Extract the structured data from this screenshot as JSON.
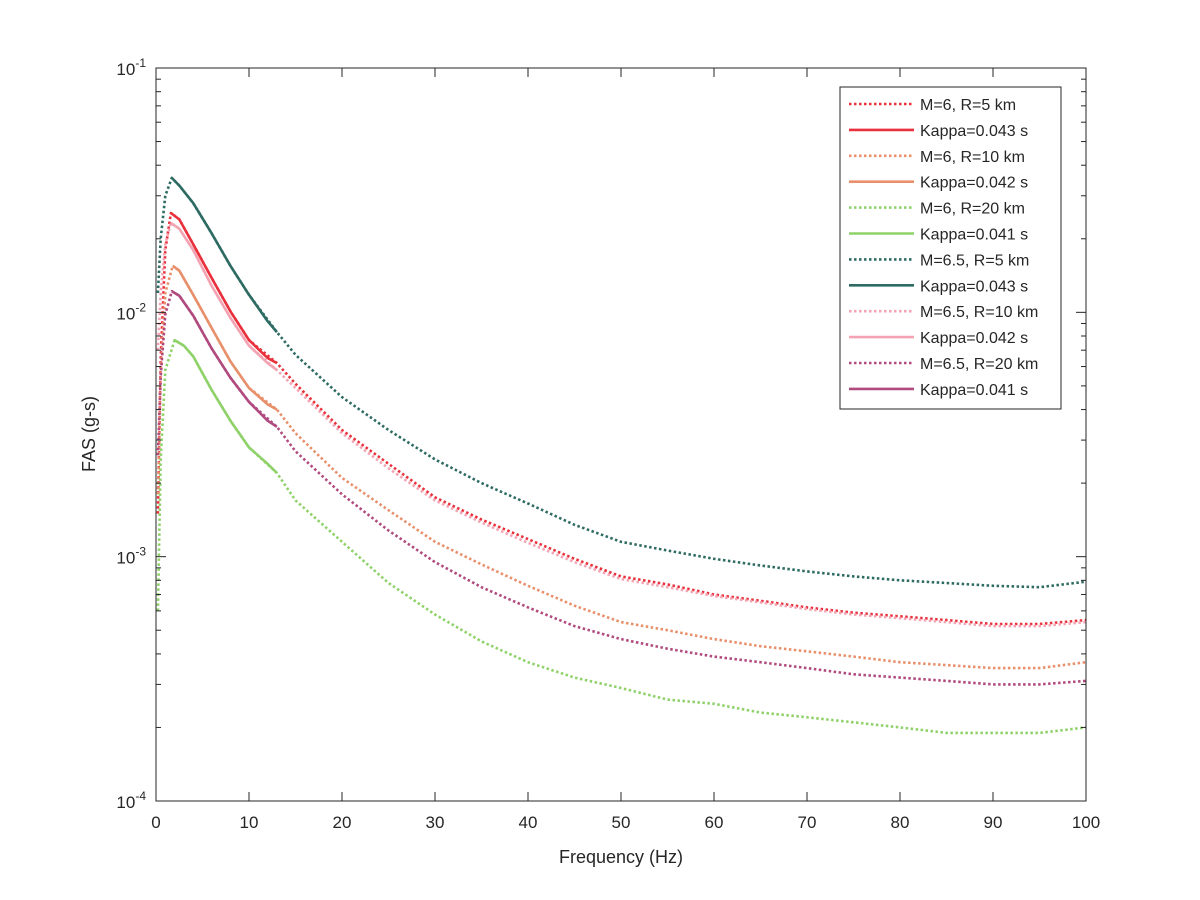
{
  "chart_data": {
    "type": "line",
    "title": "",
    "xlabel": "Frequency (Hz)",
    "ylabel": "FAS (g-s)",
    "xscale": "linear",
    "yscale": "log",
    "xlim": [
      0,
      100
    ],
    "ylim": [
      0.0001,
      0.1
    ],
    "xticks": [
      0,
      10,
      20,
      30,
      40,
      50,
      60,
      70,
      80,
      90,
      100
    ],
    "yticks": [
      {
        "value": 0.0001,
        "base": "10",
        "exp": "-4"
      },
      {
        "value": 0.001,
        "base": "10",
        "exp": "-3"
      },
      {
        "value": 0.01,
        "base": "10",
        "exp": "-2"
      },
      {
        "value": 0.1,
        "base": "10",
        "exp": "-1"
      }
    ],
    "grid": false,
    "legend_position": "top-right",
    "series": [
      {
        "name": "M=6, R=5 km",
        "style": "dotted",
        "color": "#e8313c",
        "points": [
          [
            0.2,
            0.0015
          ],
          [
            0.5,
            0.0065
          ],
          [
            1,
            0.018
          ],
          [
            1.6,
            0.0255
          ],
          [
            2.5,
            0.024
          ],
          [
            4,
            0.019
          ],
          [
            6,
            0.0138
          ],
          [
            8,
            0.0101
          ],
          [
            10,
            0.0077
          ],
          [
            13,
            0.0062
          ],
          [
            15,
            0.0051
          ],
          [
            20,
            0.0033
          ],
          [
            25,
            0.0024
          ],
          [
            30,
            0.00175
          ],
          [
            35,
            0.00142
          ],
          [
            40,
            0.00118
          ],
          [
            45,
            0.00098
          ],
          [
            50,
            0.00083
          ],
          [
            55,
            0.00077
          ],
          [
            60,
            0.0007
          ],
          [
            65,
            0.00066
          ],
          [
            70,
            0.00062
          ],
          [
            75,
            0.00059
          ],
          [
            80,
            0.00057
          ],
          [
            85,
            0.00055
          ],
          [
            90,
            0.00053
          ],
          [
            95,
            0.00053
          ],
          [
            100,
            0.00055
          ]
        ]
      },
      {
        "name": "Kappa=0.043 s",
        "style": "solid",
        "color": "#e8313c",
        "points": [
          [
            1.6,
            0.0255
          ],
          [
            2.5,
            0.024
          ],
          [
            4,
            0.019
          ],
          [
            6,
            0.0138
          ],
          [
            8,
            0.0101
          ],
          [
            10,
            0.0077
          ],
          [
            12,
            0.0065
          ],
          [
            13,
            0.0062
          ]
        ]
      },
      {
        "name": "M=6, R=10 km",
        "style": "dotted",
        "color": "#e8906c",
        "points": [
          [
            0.2,
            0.0018
          ],
          [
            0.5,
            0.0055
          ],
          [
            1,
            0.012
          ],
          [
            1.8,
            0.0155
          ],
          [
            2.5,
            0.0148
          ],
          [
            4,
            0.0118
          ],
          [
            6,
            0.0086
          ],
          [
            8,
            0.0063
          ],
          [
            10,
            0.0049
          ],
          [
            13,
            0.004
          ],
          [
            15,
            0.0032
          ],
          [
            20,
            0.0021
          ],
          [
            25,
            0.00155
          ],
          [
            30,
            0.00115
          ],
          [
            35,
            0.00093
          ],
          [
            40,
            0.00076
          ],
          [
            45,
            0.00063
          ],
          [
            50,
            0.00054
          ],
          [
            55,
            0.0005
          ],
          [
            60,
            0.00046
          ],
          [
            65,
            0.00043
          ],
          [
            70,
            0.00041
          ],
          [
            75,
            0.00039
          ],
          [
            80,
            0.00037
          ],
          [
            85,
            0.00036
          ],
          [
            90,
            0.00035
          ],
          [
            95,
            0.00035
          ],
          [
            100,
            0.00037
          ]
        ]
      },
      {
        "name": "Kappa=0.042 s",
        "style": "solid",
        "color": "#e8906c",
        "points": [
          [
            1.8,
            0.0155
          ],
          [
            2.5,
            0.0148
          ],
          [
            4,
            0.0118
          ],
          [
            6,
            0.0086
          ],
          [
            8,
            0.0063
          ],
          [
            10,
            0.0049
          ],
          [
            12,
            0.0042
          ],
          [
            13,
            0.004
          ]
        ]
      },
      {
        "name": "M=6, R=20 km",
        "style": "dotted",
        "color": "#8fd26a",
        "points": [
          [
            0.2,
            0.0006
          ],
          [
            0.5,
            0.0025
          ],
          [
            1,
            0.0058
          ],
          [
            2,
            0.0077
          ],
          [
            3,
            0.0073
          ],
          [
            4,
            0.0066
          ],
          [
            6,
            0.0048
          ],
          [
            8,
            0.0036
          ],
          [
            10,
            0.0028
          ],
          [
            13,
            0.0022
          ],
          [
            15,
            0.0017
          ],
          [
            20,
            0.00115
          ],
          [
            25,
            0.00078
          ],
          [
            30,
            0.00058
          ],
          [
            35,
            0.00045
          ],
          [
            40,
            0.00037
          ],
          [
            45,
            0.00032
          ],
          [
            50,
            0.00029
          ],
          [
            55,
            0.00026
          ],
          [
            60,
            0.00025
          ],
          [
            65,
            0.00023
          ],
          [
            70,
            0.00022
          ],
          [
            75,
            0.00021
          ],
          [
            80,
            0.0002
          ],
          [
            85,
            0.00019
          ],
          [
            90,
            0.00019
          ],
          [
            95,
            0.00019
          ],
          [
            100,
            0.0002
          ]
        ]
      },
      {
        "name": "Kappa=0.041 s",
        "style": "solid",
        "color": "#8fd26a",
        "points": [
          [
            2,
            0.0077
          ],
          [
            3,
            0.0073
          ],
          [
            4,
            0.0066
          ],
          [
            6,
            0.0048
          ],
          [
            8,
            0.0036
          ],
          [
            10,
            0.0028
          ],
          [
            12,
            0.0024
          ],
          [
            13,
            0.0022
          ]
        ]
      },
      {
        "name": "M=6.5, R=5 km",
        "style": "dotted",
        "color": "#2e6b63",
        "points": [
          [
            0.2,
            0.012
          ],
          [
            0.5,
            0.02
          ],
          [
            1,
            0.03
          ],
          [
            1.7,
            0.0355
          ],
          [
            2.5,
            0.033
          ],
          [
            4,
            0.028
          ],
          [
            6,
            0.021
          ],
          [
            8,
            0.0155
          ],
          [
            10,
            0.0118
          ],
          [
            13,
            0.0083
          ],
          [
            15,
            0.0067
          ],
          [
            20,
            0.0045
          ],
          [
            25,
            0.0033
          ],
          [
            30,
            0.0025
          ],
          [
            35,
            0.002
          ],
          [
            40,
            0.00165
          ],
          [
            45,
            0.00135
          ],
          [
            50,
            0.00115
          ],
          [
            55,
            0.00106
          ],
          [
            60,
            0.00098
          ],
          [
            65,
            0.00092
          ],
          [
            70,
            0.00087
          ],
          [
            75,
            0.00083
          ],
          [
            80,
            0.0008
          ],
          [
            85,
            0.00078
          ],
          [
            90,
            0.00076
          ],
          [
            95,
            0.00075
          ],
          [
            100,
            0.00079
          ]
        ]
      },
      {
        "name": "Kappa=0.043 s",
        "style": "solid",
        "color": "#2e6b63",
        "points": [
          [
            1.7,
            0.0355
          ],
          [
            2.5,
            0.033
          ],
          [
            4,
            0.028
          ],
          [
            6,
            0.021
          ],
          [
            8,
            0.0155
          ],
          [
            10,
            0.0118
          ],
          [
            12,
            0.0092
          ],
          [
            13,
            0.0083
          ]
        ]
      },
      {
        "name": "M=6.5, R=10 km",
        "style": "dotted",
        "color": "#f4a3b2",
        "points": [
          [
            0.2,
            0.007
          ],
          [
            0.5,
            0.012
          ],
          [
            1,
            0.019
          ],
          [
            1.6,
            0.0232
          ],
          [
            2.5,
            0.022
          ],
          [
            4,
            0.018
          ],
          [
            6,
            0.0128
          ],
          [
            8,
            0.0095
          ],
          [
            10,
            0.0073
          ],
          [
            13,
            0.0058
          ],
          [
            15,
            0.0049
          ],
          [
            20,
            0.0032
          ],
          [
            25,
            0.0023
          ],
          [
            30,
            0.0017
          ],
          [
            35,
            0.00138
          ],
          [
            40,
            0.00114
          ],
          [
            45,
            0.00095
          ],
          [
            50,
            0.00081
          ],
          [
            55,
            0.00075
          ],
          [
            60,
            0.00069
          ],
          [
            65,
            0.00065
          ],
          [
            70,
            0.00061
          ],
          [
            75,
            0.00058
          ],
          [
            80,
            0.00056
          ],
          [
            85,
            0.00054
          ],
          [
            90,
            0.00052
          ],
          [
            95,
            0.00052
          ],
          [
            100,
            0.00054
          ]
        ]
      },
      {
        "name": "Kappa=0.042 s",
        "style": "solid",
        "color": "#f4a3b2",
        "points": [
          [
            1.6,
            0.0232
          ],
          [
            2.5,
            0.022
          ],
          [
            4,
            0.018
          ],
          [
            6,
            0.0128
          ],
          [
            8,
            0.0095
          ],
          [
            10,
            0.0073
          ],
          [
            12,
            0.0062
          ],
          [
            13,
            0.0058
          ]
        ]
      },
      {
        "name": "M=6.5, R=20 km",
        "style": "dotted",
        "color": "#b04a7f",
        "points": [
          [
            0.2,
            0.0026
          ],
          [
            0.5,
            0.0055
          ],
          [
            1,
            0.0098
          ],
          [
            1.7,
            0.0122
          ],
          [
            2.5,
            0.0117
          ],
          [
            4,
            0.0097
          ],
          [
            6,
            0.0071
          ],
          [
            8,
            0.0054
          ],
          [
            10,
            0.0043
          ],
          [
            13,
            0.0034
          ],
          [
            15,
            0.0027
          ],
          [
            20,
            0.0018
          ],
          [
            25,
            0.00128
          ],
          [
            30,
            0.00095
          ],
          [
            35,
            0.00075
          ],
          [
            40,
            0.00062
          ],
          [
            45,
            0.00052
          ],
          [
            50,
            0.00046
          ],
          [
            55,
            0.00042
          ],
          [
            60,
            0.00039
          ],
          [
            65,
            0.00037
          ],
          [
            70,
            0.00035
          ],
          [
            75,
            0.00033
          ],
          [
            80,
            0.00032
          ],
          [
            85,
            0.00031
          ],
          [
            90,
            0.0003
          ],
          [
            95,
            0.0003
          ],
          [
            100,
            0.00031
          ]
        ]
      },
      {
        "name": "Kappa=0.041 s",
        "style": "solid",
        "color": "#b04a7f",
        "points": [
          [
            1.7,
            0.0122
          ],
          [
            2.5,
            0.0117
          ],
          [
            4,
            0.0097
          ],
          [
            6,
            0.0071
          ],
          [
            8,
            0.0054
          ],
          [
            10,
            0.0043
          ],
          [
            12,
            0.0036
          ],
          [
            13,
            0.0034
          ]
        ]
      }
    ]
  }
}
